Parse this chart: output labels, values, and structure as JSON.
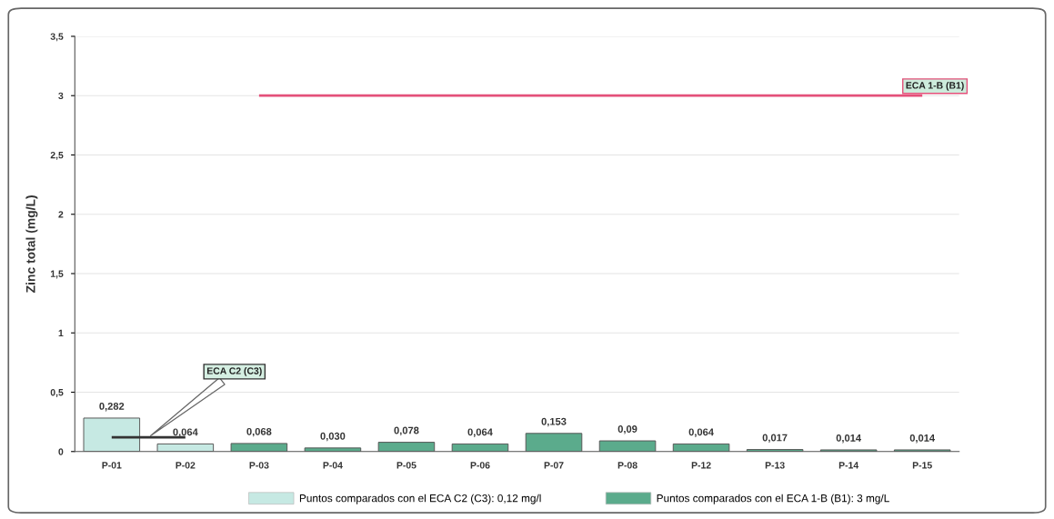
{
  "chart_data": {
    "type": "bar",
    "ylabel": "Zinc total (mg/L)",
    "categories": [
      "P-01",
      "P-02",
      "P-03",
      "P-04",
      "P-05",
      "P-06",
      "P-07",
      "P-08",
      "P-12",
      "P-13",
      "P-14",
      "P-15"
    ],
    "stacked": true,
    "series": [
      {
        "name": "Puntos comparados con el ECA C2 (C3): 0,12 mg/l",
        "color": "#c6e9e3",
        "values": [
          0.282,
          0.064,
          null,
          null,
          null,
          null,
          null,
          null,
          null,
          null,
          null,
          null
        ],
        "value_labels": [
          "0,282",
          "0,064",
          null,
          null,
          null,
          null,
          null,
          null,
          null,
          null,
          null,
          null
        ]
      },
      {
        "name": "Puntos comparados con el ECA 1-B (B1): 3 mg/L",
        "color": "#5bab8c",
        "values": [
          null,
          null,
          0.068,
          0.03,
          0.078,
          0.064,
          0.153,
          0.09,
          0.064,
          0.017,
          0.014,
          0.014
        ],
        "value_labels": [
          null,
          null,
          "0,068",
          "0,030",
          "0,078",
          "0,064",
          "0,153",
          "0,09",
          "0,064",
          "0,017",
          "0,014",
          "0,014"
        ]
      },
      {
        "type": "line",
        "name": "ECA C2 (C3)",
        "color": "#333333",
        "values": [
          0.12,
          0.12,
          null,
          null,
          null,
          null,
          null,
          null,
          null,
          null,
          null,
          null
        ]
      },
      {
        "type": "line",
        "name": "ECA 1-B (B1)",
        "color": "#e4507a",
        "values": [
          null,
          null,
          3,
          3,
          3,
          3,
          3,
          3,
          3,
          3,
          3,
          3
        ]
      }
    ],
    "ylim": [
      0,
      3.5
    ],
    "yticks": [
      0,
      {
        "value": 0.5,
        "label": "0,5"
      },
      1,
      {
        "value": 1.5,
        "label": "1,5"
      },
      2,
      {
        "value": 2.5,
        "label": "2,5"
      },
      3,
      {
        "value": 3.5,
        "label": "3,5"
      }
    ],
    "grid": "y",
    "legend": "bottom"
  }
}
